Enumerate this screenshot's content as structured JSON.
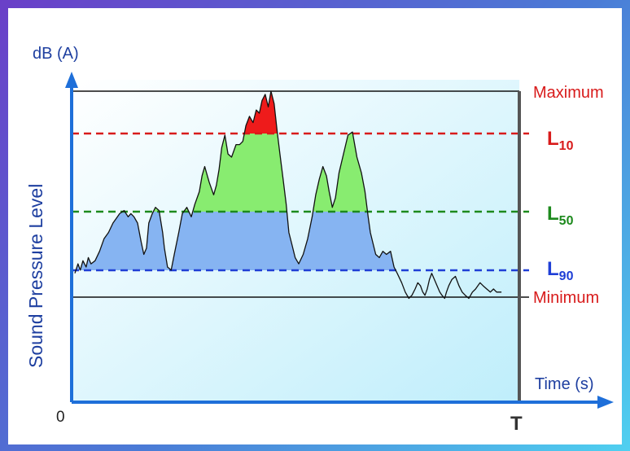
{
  "labels": {
    "y_unit": "dB (A)",
    "y_axis_title": "Sound Pressure Level",
    "x_axis_title": "Time (s)",
    "origin": "0",
    "end_time": "T",
    "maximum": "Maximum",
    "minimum": "Minimum",
    "l10": {
      "main": "L",
      "sub": "10"
    },
    "l50": {
      "main": "L",
      "sub": "50"
    },
    "l90": {
      "main": "L",
      "sub": "90"
    }
  },
  "colors": {
    "frame_top": "#6a3fc8",
    "frame_bottom": "#4fd0f0",
    "axis": "#1e6fd9",
    "axis_text": "#1e3fa0",
    "maximum": "#d81b1b",
    "l10": "#d81b1b",
    "l50": "#1d8a1d",
    "l90": "#1f3fd6",
    "minimum": "#d81b1b",
    "above_l10_fill": "#ee1b1b",
    "l50_to_l10_fill": "#88ec70",
    "l90_to_l50_fill": "#86b4f2",
    "plot_gradient_top": "#ffffff",
    "plot_gradient_bottom": "#bfeefb"
  },
  "chart_data": {
    "type": "line",
    "x_label": "Time (s)",
    "y_label": "Sound Pressure Level",
    "y_unit": "dB (A)",
    "reference_levels": {
      "Maximum": 1.0,
      "L10": 0.851,
      "L50": 0.609,
      "L90": 0.427,
      "Minimum": 0.344
    },
    "signal": {
      "x": [
        0,
        0.007,
        0.012,
        0.018,
        0.025,
        0.03,
        0.036,
        0.045,
        0.055,
        0.065,
        0.075,
        0.085,
        0.095,
        0.1,
        0.11,
        0.119,
        0.125,
        0.132,
        0.14,
        0.148,
        0.154,
        0.16,
        0.165,
        0.173,
        0.18,
        0.188,
        0.196,
        0.2,
        0.207,
        0.215,
        0.222,
        0.232,
        0.24,
        0.25,
        0.26,
        0.268,
        0.278,
        0.284,
        0.29,
        0.3,
        0.31,
        0.316,
        0.322,
        0.328,
        0.335,
        0.342,
        0.35,
        0.36,
        0.368,
        0.375,
        0.382,
        0.39,
        0.398,
        0.405,
        0.412,
        0.418,
        0.425,
        0.432,
        0.438,
        0.445,
        0.452,
        0.458,
        0.465,
        0.472,
        0.478,
        0.485,
        0.492,
        0.5,
        0.51,
        0.52,
        0.53,
        0.538,
        0.546,
        0.554,
        0.562,
        0.568,
        0.575,
        0.582,
        0.59,
        0.6,
        0.61,
        0.62,
        0.63,
        0.64,
        0.648,
        0.655,
        0.66,
        0.665,
        0.672,
        0.68,
        0.688,
        0.696,
        0.705,
        0.713,
        0.72,
        0.73,
        0.738,
        0.746,
        0.753,
        0.76,
        0.766,
        0.772,
        0.777,
        0.782,
        0.787,
        0.792,
        0.797,
        0.803,
        0.809,
        0.815,
        0.82,
        0.826,
        0.83,
        0.835,
        0.842,
        0.85,
        0.858,
        0.865,
        0.872,
        0.88,
        0.888,
        0.895,
        0.9,
        0.905,
        0.912,
        0.92,
        0.928,
        0.935,
        0.942,
        0.948,
        0.953
      ],
      "y": [
        0.42,
        0.45,
        0.43,
        0.46,
        0.44,
        0.47,
        0.45,
        0.46,
        0.49,
        0.53,
        0.55,
        0.58,
        0.6,
        0.61,
        0.62,
        0.6,
        0.61,
        0.6,
        0.58,
        0.52,
        0.48,
        0.5,
        0.58,
        0.61,
        0.63,
        0.62,
        0.55,
        0.5,
        0.44,
        0.43,
        0.48,
        0.55,
        0.61,
        0.63,
        0.6,
        0.64,
        0.68,
        0.73,
        0.76,
        0.71,
        0.67,
        0.7,
        0.75,
        0.82,
        0.86,
        0.8,
        0.79,
        0.83,
        0.83,
        0.84,
        0.89,
        0.92,
        0.9,
        0.94,
        0.93,
        0.97,
        0.99,
        0.95,
        1.0,
        0.96,
        0.87,
        0.8,
        0.72,
        0.64,
        0.55,
        0.51,
        0.47,
        0.45,
        0.48,
        0.53,
        0.6,
        0.67,
        0.72,
        0.76,
        0.73,
        0.68,
        0.63,
        0.66,
        0.74,
        0.8,
        0.86,
        0.87,
        0.79,
        0.74,
        0.68,
        0.6,
        0.55,
        0.52,
        0.48,
        0.47,
        0.49,
        0.48,
        0.49,
        0.44,
        0.42,
        0.39,
        0.36,
        0.34,
        0.35,
        0.37,
        0.39,
        0.38,
        0.36,
        0.35,
        0.37,
        0.4,
        0.42,
        0.4,
        0.38,
        0.36,
        0.35,
        0.34,
        0.36,
        0.38,
        0.4,
        0.41,
        0.38,
        0.36,
        0.35,
        0.34,
        0.36,
        0.37,
        0.38,
        0.39,
        0.38,
        0.37,
        0.36,
        0.37,
        0.36,
        0.36,
        0.36
      ]
    }
  }
}
